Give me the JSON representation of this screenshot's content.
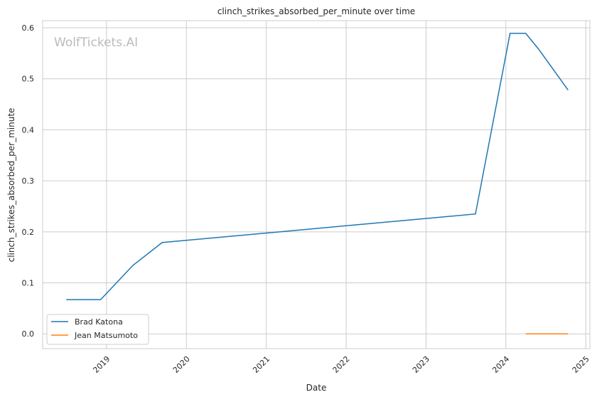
{
  "chart_data": {
    "type": "line",
    "title": "clinch_strikes_absorbed_per_minute over time",
    "xlabel": "Date",
    "ylabel": "clinch_strikes_absorbed_per_minute",
    "watermark": "WolfTickets.AI",
    "xlim": [
      "2018-03-15",
      "2025-01-20"
    ],
    "ylim": [
      -0.029,
      0.614
    ],
    "xticks": [
      "2019",
      "2020",
      "2021",
      "2022",
      "2023",
      "2024",
      "2025"
    ],
    "yticks": [
      "0.0",
      "0.1",
      "0.2",
      "0.3",
      "0.4",
      "0.5",
      "0.6"
    ],
    "grid": true,
    "legend": "bottom-left",
    "series": [
      {
        "name": "Brad Katona",
        "color": "#1f77b4",
        "points": [
          [
            "2018-07-01",
            0.067
          ],
          [
            "2018-12-05",
            0.067
          ],
          [
            "2019-05-01",
            0.134
          ],
          [
            "2019-09-12",
            0.179
          ],
          [
            "2023-08-15",
            0.235
          ],
          [
            "2024-01-20",
            0.589
          ],
          [
            "2024-04-01",
            0.589
          ],
          [
            "2024-06-01",
            0.557
          ],
          [
            "2024-10-12",
            0.478
          ]
        ]
      },
      {
        "name": "Jean Matsumoto",
        "color": "#ff7f0e",
        "points": [
          [
            "2024-04-01",
            0.0
          ],
          [
            "2024-10-12",
            0.0
          ]
        ]
      }
    ]
  }
}
